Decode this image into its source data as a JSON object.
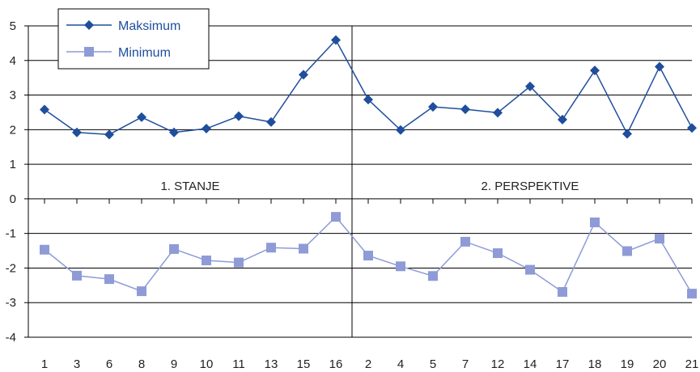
{
  "chart_data": {
    "type": "line",
    "categories": [
      "1",
      "3",
      "6",
      "8",
      "9",
      "10",
      "11",
      "13",
      "15",
      "16",
      "2",
      "4",
      "5",
      "7",
      "12",
      "14",
      "17",
      "18",
      "19",
      "20",
      "21"
    ],
    "ylim": [
      -4,
      5
    ],
    "yticks": [
      5,
      4,
      3,
      2,
      1,
      0,
      -1,
      -2,
      -3,
      -4
    ],
    "grid": true,
    "legend_position": "top-left",
    "sections": [
      {
        "label": "1. STANJE",
        "start_index": 0,
        "end_index": 9
      },
      {
        "label": "2. PERSPEKTIVE",
        "start_index": 10,
        "end_index": 20
      }
    ],
    "series": [
      {
        "name": "Maksimum",
        "marker": "diamond",
        "color": "#1f4e9c",
        "values": [
          2.58,
          1.92,
          1.86,
          2.36,
          1.92,
          2.03,
          2.39,
          2.22,
          3.59,
          4.59,
          2.87,
          1.99,
          2.66,
          2.59,
          2.49,
          3.25,
          2.29,
          3.71,
          1.88,
          3.82,
          2.05
        ]
      },
      {
        "name": "Minimum",
        "marker": "square",
        "color": "#8e9bd6",
        "values": [
          -1.47,
          -2.22,
          -2.32,
          -2.67,
          -1.45,
          -1.78,
          -1.84,
          -1.41,
          -1.44,
          -0.52,
          -1.64,
          -1.95,
          -2.23,
          -1.24,
          -1.57,
          -2.05,
          -2.69,
          -0.68,
          -1.51,
          -1.15,
          -2.74
        ]
      }
    ]
  }
}
